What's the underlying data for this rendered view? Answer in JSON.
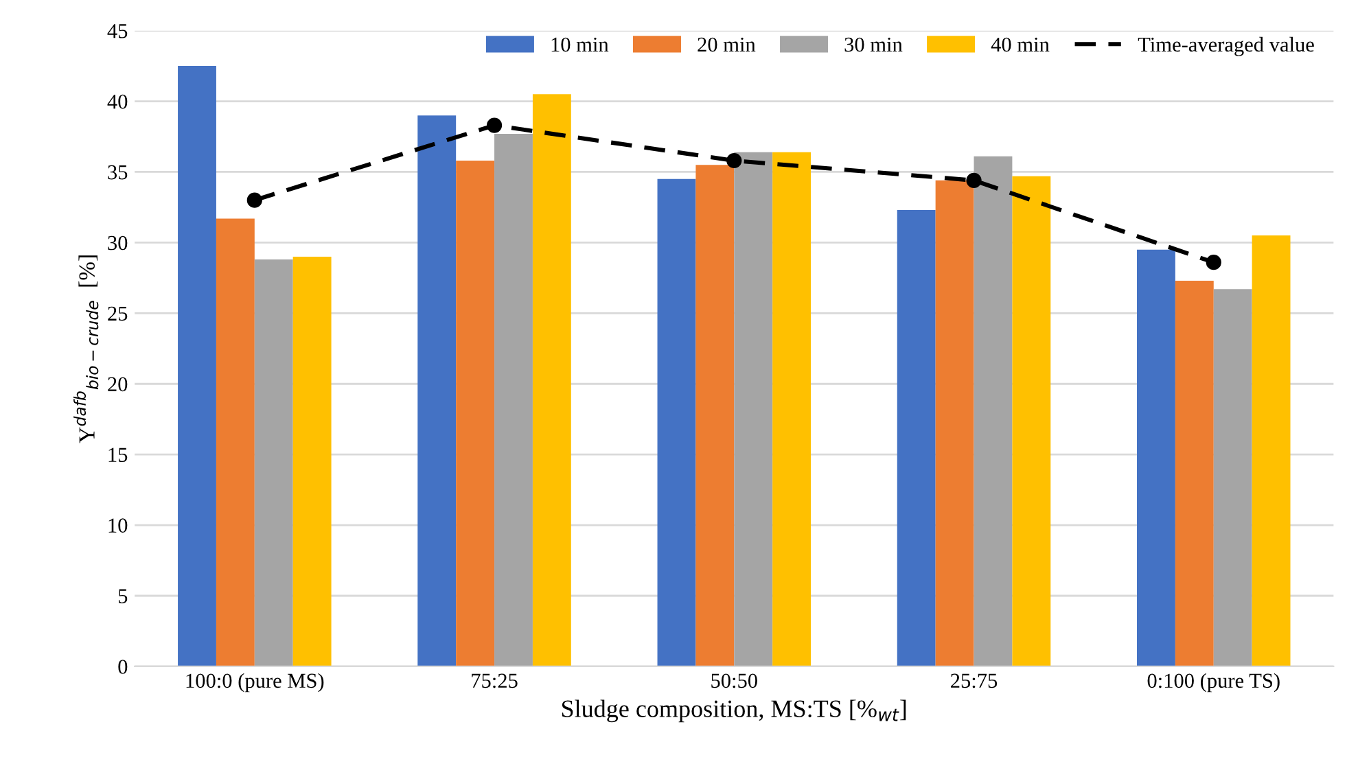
{
  "chart_data": {
    "type": "bar",
    "xlabel": "Sludge composition, MS:TS [%$_{wt}$]",
    "ylabel": "Y$^{dafb}$$_{bio−crude}$  [%]",
    "categories": [
      "100:0 (pure MS)",
      "75:25",
      "50:50",
      "25:75",
      "0:100 (pure TS)"
    ],
    "series": [
      {
        "name": "10 min",
        "color": "#4472c4",
        "values": [
          42.5,
          39.0,
          34.5,
          32.3,
          29.5
        ]
      },
      {
        "name": "20 min",
        "color": "#ed7d31",
        "values": [
          31.7,
          35.8,
          35.5,
          34.4,
          27.3
        ]
      },
      {
        "name": "30 min",
        "color": "#a5a5a5",
        "values": [
          28.8,
          37.7,
          36.4,
          36.1,
          26.7
        ]
      },
      {
        "name": "40 min",
        "color": "#ffc000",
        "values": [
          29.0,
          40.5,
          36.4,
          34.7,
          30.5
        ]
      },
      {
        "name": "Time-averaged value",
        "type": "line",
        "color": "#000000",
        "marker": "circle",
        "line_style": "dashed",
        "values": [
          33.0,
          38.3,
          35.8,
          34.4,
          28.6
        ]
      }
    ],
    "ylim": [
      0,
      45
    ],
    "yticks": [
      0,
      5,
      10,
      15,
      20,
      25,
      30,
      35,
      40,
      45
    ],
    "grid": "y",
    "legend": "top right"
  }
}
